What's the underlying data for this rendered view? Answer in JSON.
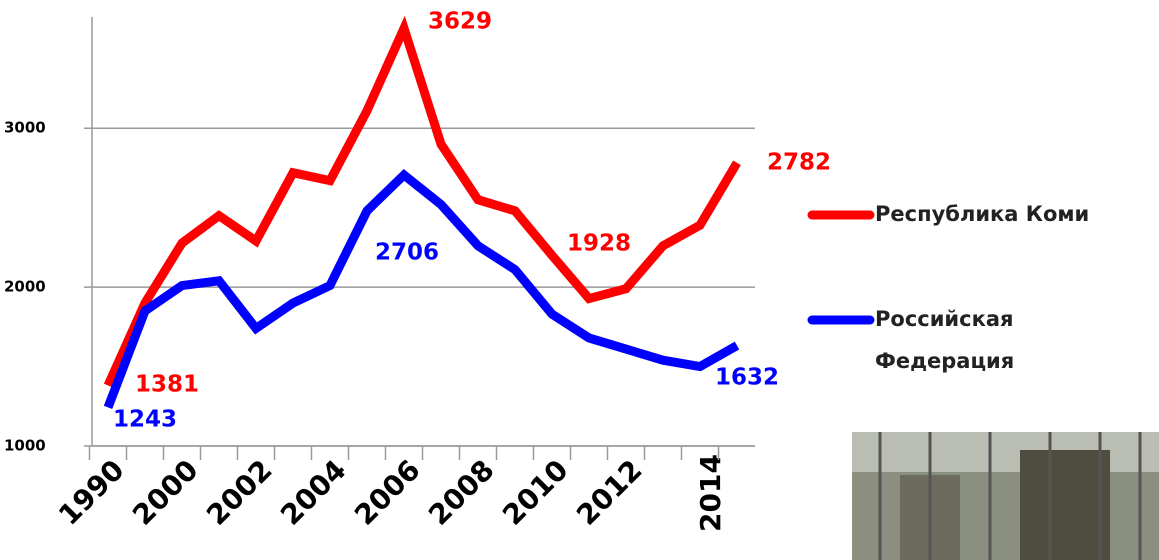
{
  "chart_data": {
    "type": "line",
    "categories": [
      "1990",
      null,
      "2000",
      null,
      "2002",
      null,
      "2004",
      null,
      "2006",
      null,
      "2008",
      null,
      "2010",
      null,
      "2012",
      null,
      "2014",
      null
    ],
    "series": [
      {
        "name": "Республика Коми",
        "color": "#ff0000",
        "values": [
          1381,
          1900,
          2277,
          2450,
          2290,
          2720,
          2670,
          3110,
          3629,
          2900,
          2550,
          2480,
          2200,
          1928,
          1990,
          2260,
          2390,
          2782
        ]
      },
      {
        "name": "Российская Федерация",
        "color": "#0000ff",
        "values": [
          1243,
          1850,
          2010,
          2040,
          1740,
          1900,
          2010,
          2480,
          2706,
          2520,
          2260,
          2110,
          1830,
          1680,
          1610,
          1540,
          1500,
          1632
        ]
      }
    ],
    "ylim": [
      1000,
      3700
    ],
    "yticks": [
      1000,
      2000,
      3000
    ],
    "grid": true,
    "legend": "right"
  }
}
